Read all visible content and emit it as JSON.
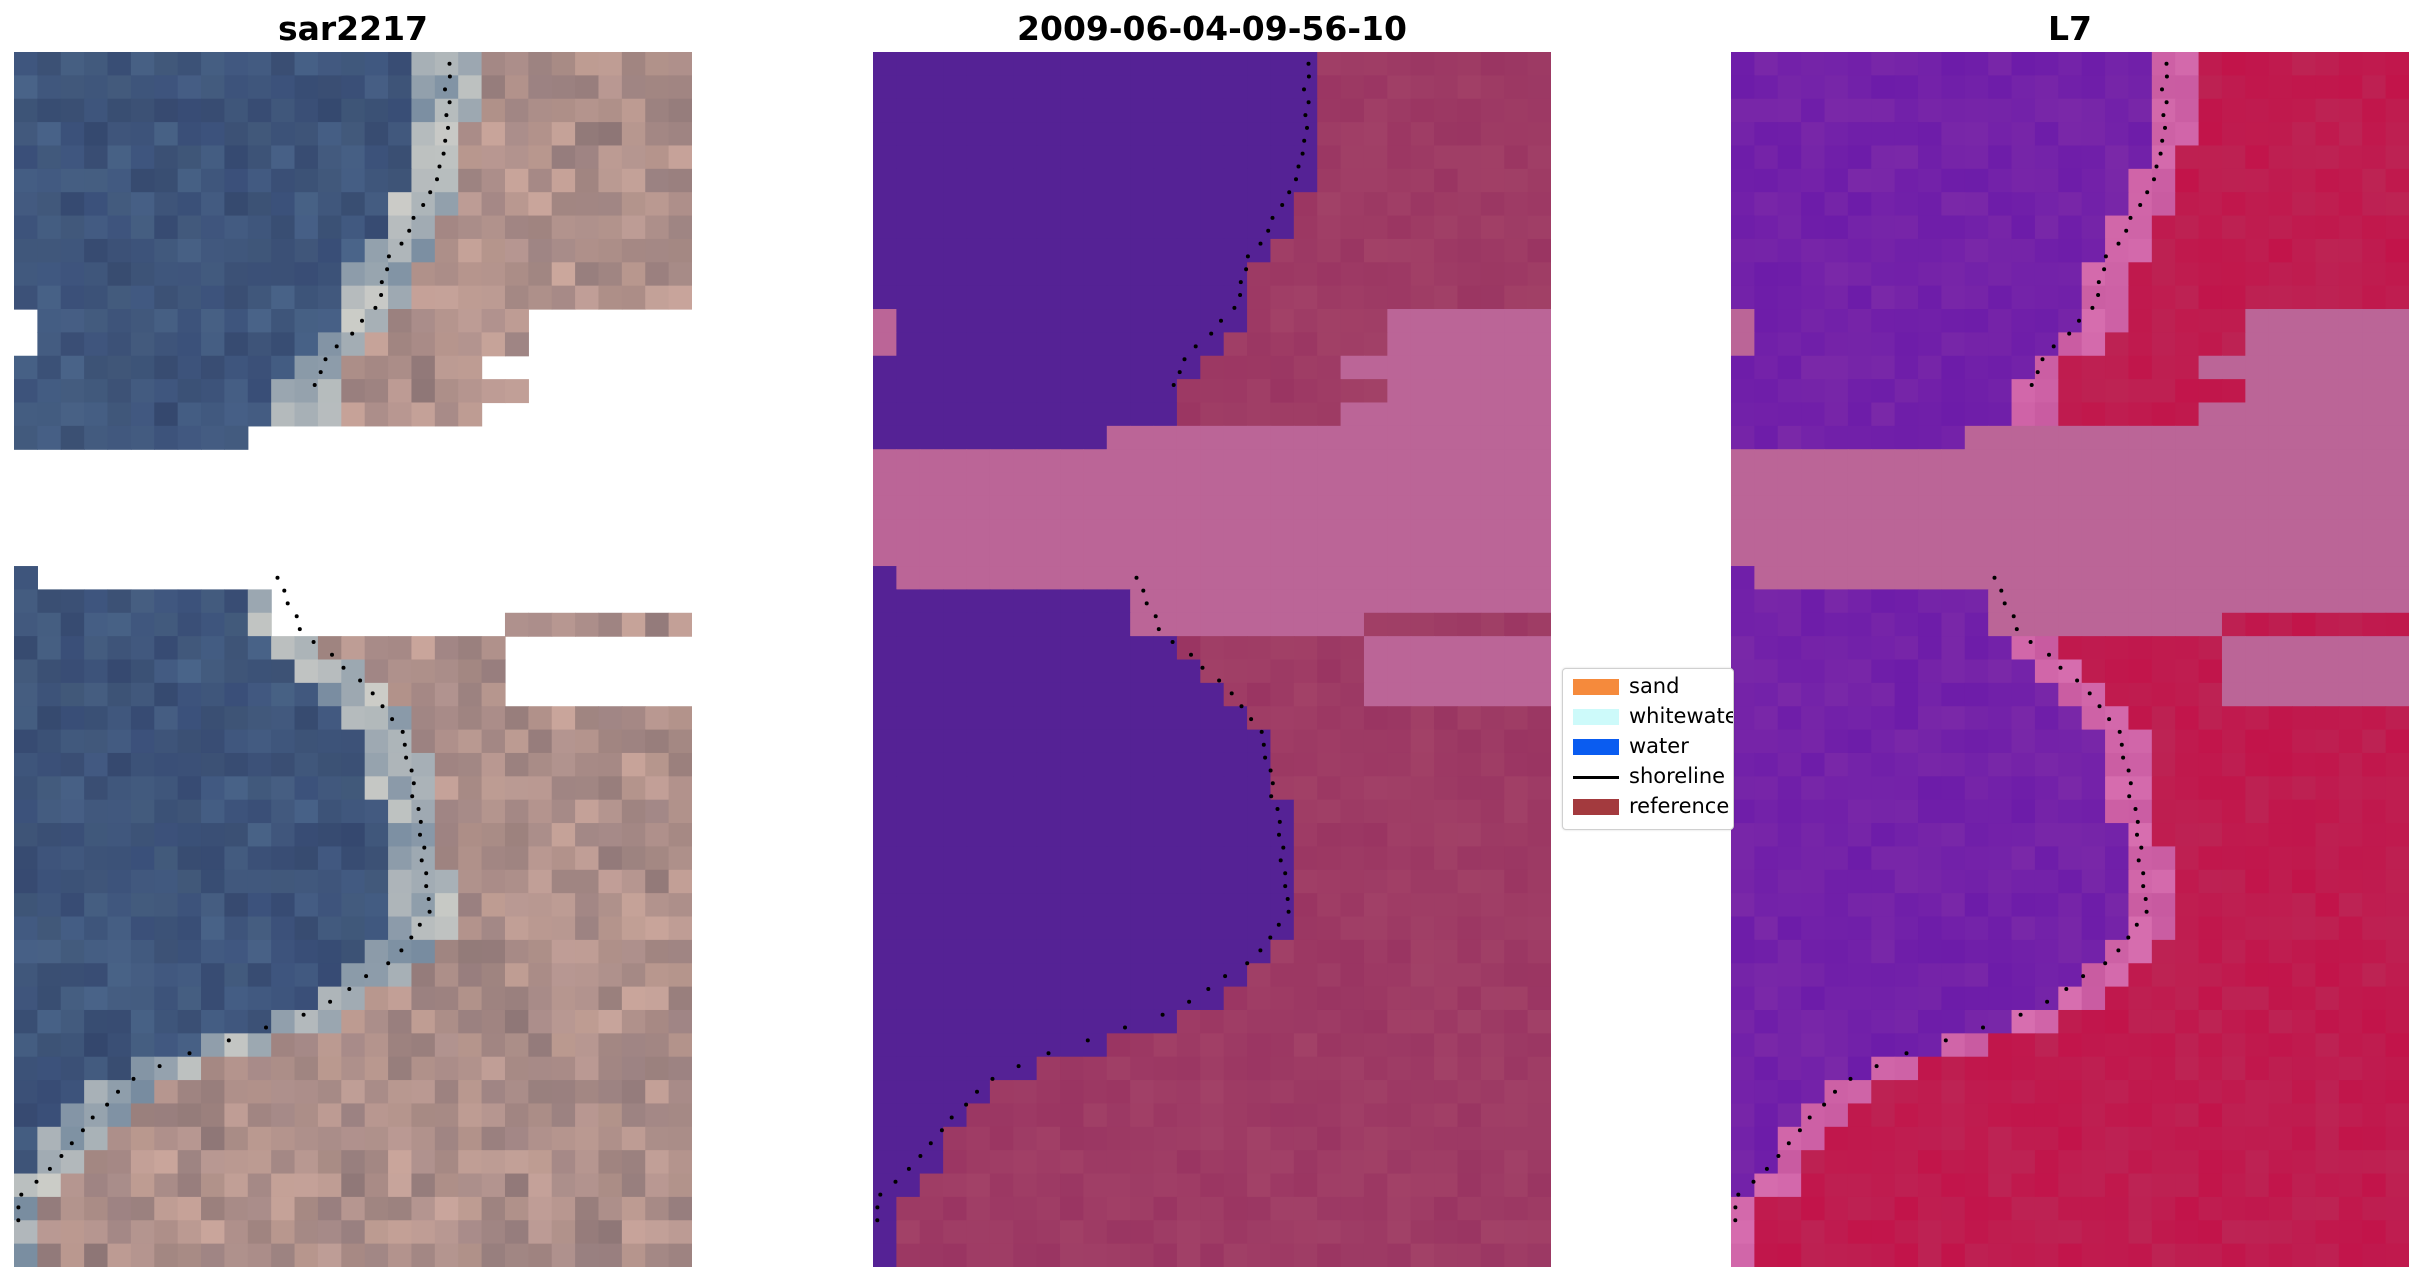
{
  "panels": [
    {
      "title": "sar2217",
      "kind": "rgb"
    },
    {
      "title": "2009-06-04-09-56-10",
      "kind": "classified"
    },
    {
      "title": "L7",
      "kind": "index"
    }
  ],
  "legend": {
    "items": [
      {
        "label": "sand",
        "color": "#f58a3c",
        "type": "patch"
      },
      {
        "label": "whitewater",
        "color": "#cdfafa",
        "type": "patch"
      },
      {
        "label": "water",
        "color": "#0a5cf0",
        "type": "patch"
      },
      {
        "label": "shoreline",
        "color": "#000000",
        "type": "line"
      },
      {
        "label": "reference",
        "color": "#a33a3e",
        "type": "patch"
      }
    ]
  },
  "colors": {
    "water_class": "#552295",
    "nodata_pink": "#bb6597",
    "land_class": "#9a3562",
    "index_land": "#c2144a",
    "index_water": "#7a28a8"
  }
}
